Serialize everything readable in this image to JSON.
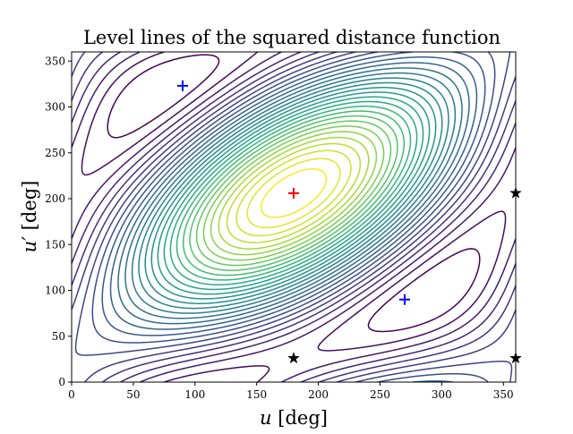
{
  "chart_data": {
    "type": "contour",
    "title": "Level lines of the squared distance function",
    "xlabel": "u [deg]",
    "ylabel": "u′ [deg]",
    "xlim": [
      0,
      360
    ],
    "ylim": [
      0,
      360
    ],
    "xticks": [
      0,
      50,
      100,
      150,
      200,
      250,
      300,
      350
    ],
    "yticks": [
      0,
      50,
      100,
      150,
      200,
      250,
      300,
      350
    ],
    "grid": false,
    "colormap": "viridis",
    "maximum": {
      "x": 180,
      "y": 206,
      "marker": "+",
      "color": "#ff0000"
    },
    "saddles": [
      {
        "x": 90,
        "y": 323,
        "marker": "+",
        "color": "#0000ff"
      },
      {
        "x": 270,
        "y": 90,
        "marker": "+",
        "color": "#0000ff"
      }
    ],
    "minima": [
      {
        "x": 180,
        "y": 26,
        "marker": "star",
        "color": "#000000"
      },
      {
        "x": 360,
        "y": 26,
        "marker": "star",
        "color": "#000000"
      },
      {
        "x": 360,
        "y": 206,
        "marker": "star",
        "color": "#000000"
      }
    ]
  }
}
